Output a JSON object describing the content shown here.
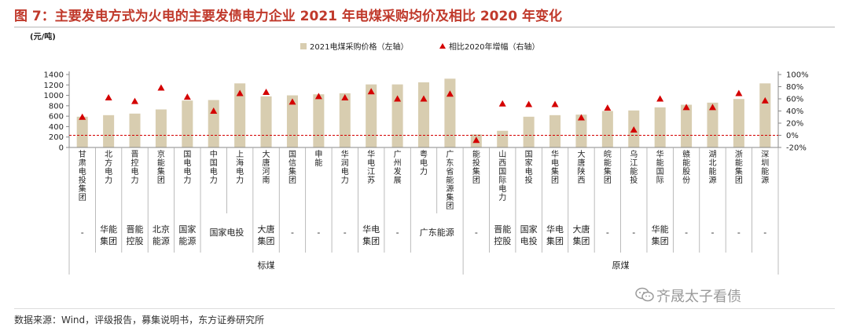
{
  "title": "图 7：主要发电方式为火电的主要发债电力企业 2021 年电煤采购均价及相比 2020 年变化",
  "source": "数据来源：Wind，评级报告，募集说明书，东方证券研究所",
  "watermark": "齐晟太子看债",
  "colors": {
    "bar": "#d8cdb0",
    "marker": "#d40000",
    "refline": "#d40000",
    "title": "#c0392b"
  },
  "chart_data": {
    "type": "bar",
    "title": "图 7：主要发电方式为火电的主要发债电力企业 2021 年电煤采购均价及相比 2020 年变化",
    "y_left_unit": "(元/吨)",
    "y_left_ticks": [
      "0",
      "200",
      "400",
      "600",
      "800",
      "1000",
      "1200",
      "1400"
    ],
    "y_right_ticks": [
      "-20%",
      "0%",
      "20%",
      "40%",
      "60%",
      "80%",
      "100%"
    ],
    "ylim_left": [
      0,
      1400
    ],
    "ylim_right": [
      -0.2,
      1.0
    ],
    "legend": [
      {
        "name": "2021电煤采购价格（左轴）",
        "marker": "square"
      },
      {
        "name": "相比2020年增幅（右轴）",
        "marker": "triangle"
      }
    ],
    "categories": [
      "甘肃电投集团",
      "北方电力",
      "晋控电力",
      "京能集团",
      "国电电力",
      "中国电力",
      "上海电力",
      "大唐河南",
      "国信集团",
      "申能",
      "华润电力",
      "华电江苏",
      "广州发展",
      "粤电力",
      "广东省能源集团",
      "能投集团",
      "山西国际电力",
      "国家电投",
      "华电集团",
      "大唐陕西",
      "皖能集团",
      "乌江能投",
      "华能国际",
      "赣能股份",
      "湖北能源",
      "浙能集团",
      "深圳能源"
    ],
    "series": [
      {
        "name": "2021电煤采购价格（左轴）",
        "axis": "left",
        "values": [
          590,
          620,
          650,
          730,
          900,
          910,
          1230,
          980,
          1000,
          1020,
          1040,
          1210,
          1210,
          1250,
          1320,
          250,
          320,
          590,
          620,
          630,
          700,
          710,
          770,
          820,
          860,
          930,
          1230
        ]
      },
      {
        "name": "相比2020年增幅（右轴）",
        "axis": "right",
        "values": [
          0.3,
          0.62,
          0.56,
          0.78,
          0.63,
          0.4,
          0.69,
          0.71,
          0.55,
          0.64,
          0.62,
          0.72,
          0.6,
          0.6,
          0.68,
          -0.08,
          0.52,
          0.51,
          0.51,
          0.29,
          0.45,
          0.09,
          0.6,
          0.46,
          0.46,
          0.69,
          0.57
        ]
      }
    ],
    "parents": [
      {
        "label": "-",
        "start": 0,
        "end": 0
      },
      {
        "label": "华能\n集团",
        "start": 1,
        "end": 1
      },
      {
        "label": "晋能\n控股",
        "start": 2,
        "end": 2
      },
      {
        "label": "北京\n能源",
        "start": 3,
        "end": 3
      },
      {
        "label": "国家\n能源",
        "start": 4,
        "end": 4
      },
      {
        "label": "国家电投",
        "start": 5,
        "end": 6
      },
      {
        "label": "大唐\n集团",
        "start": 7,
        "end": 7
      },
      {
        "label": "-",
        "start": 8,
        "end": 8
      },
      {
        "label": "-",
        "start": 9,
        "end": 9
      },
      {
        "label": "-",
        "start": 10,
        "end": 10
      },
      {
        "label": "华电\n集团",
        "start": 11,
        "end": 11
      },
      {
        "label": "-",
        "start": 12,
        "end": 12
      },
      {
        "label": "广东能源",
        "start": 13,
        "end": 14
      },
      {
        "label": "-",
        "start": 15,
        "end": 15
      },
      {
        "label": "晋能\n控股",
        "start": 16,
        "end": 16
      },
      {
        "label": "国家\n电投",
        "start": 17,
        "end": 17
      },
      {
        "label": "华电\n集团",
        "start": 18,
        "end": 18
      },
      {
        "label": "大唐\n集团",
        "start": 19,
        "end": 19
      },
      {
        "label": "-",
        "start": 20,
        "end": 20
      },
      {
        "label": "-",
        "start": 21,
        "end": 21
      },
      {
        "label": "华能\n集团",
        "start": 22,
        "end": 22
      },
      {
        "label": "-",
        "start": 23,
        "end": 23
      },
      {
        "label": "-",
        "start": 24,
        "end": 24
      },
      {
        "label": "-",
        "start": 25,
        "end": 25
      },
      {
        "label": "-",
        "start": 26,
        "end": 26
      }
    ],
    "groups": [
      {
        "label": "标煤",
        "start": 0,
        "end": 14
      },
      {
        "label": "原煤",
        "start": 15,
        "end": 26
      }
    ]
  }
}
